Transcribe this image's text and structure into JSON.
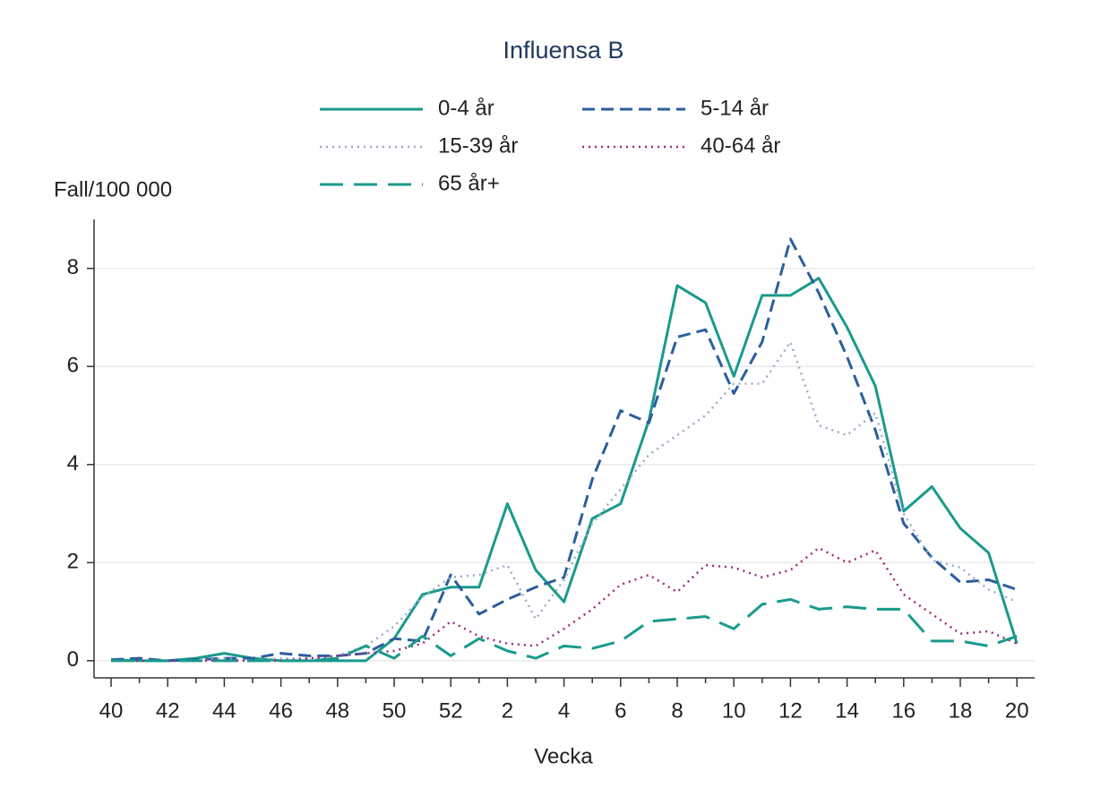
{
  "chart_data": {
    "type": "line",
    "title": "Influensa B",
    "ylabel": "Fall/100 000",
    "xlabel": "Vecka",
    "categories": [
      "40",
      null,
      "42",
      null,
      "44",
      null,
      "46",
      null,
      "48",
      null,
      "50",
      null,
      "52",
      null,
      "2",
      null,
      "4",
      null,
      "6",
      null,
      "8",
      null,
      "10",
      null,
      "12",
      null,
      "14",
      null,
      "16",
      null,
      "18",
      null,
      "20"
    ],
    "ylim": [
      -0.35,
      9
    ],
    "yticks": [
      0,
      2,
      4,
      6,
      8
    ],
    "grid": true,
    "series": [
      {
        "name": "0-4 år",
        "color": "#1a9a8c",
        "style": "solid",
        "values": [
          0.02,
          0,
          0,
          0.05,
          0.15,
          0.05,
          0,
          0,
          0,
          0,
          0.45,
          1.35,
          1.5,
          1.5,
          3.2,
          1.85,
          1.2,
          2.9,
          3.2,
          4.9,
          7.65,
          7.3,
          5.8,
          7.45,
          7.45,
          7.8,
          6.8,
          5.6,
          3.05,
          3.55,
          2.7,
          2.2,
          0.35
        ]
      },
      {
        "name": "5-14 år",
        "color": "#2c5e9e",
        "style": "dashed",
        "values": [
          0.02,
          0.05,
          0,
          0.02,
          0.05,
          0.05,
          0.15,
          0.1,
          0.1,
          0.15,
          0.45,
          0.4,
          1.75,
          0.95,
          1.25,
          1.5,
          1.7,
          3.7,
          5.1,
          4.85,
          6.6,
          6.75,
          5.45,
          6.5,
          8.6,
          7.5,
          6.2,
          4.7,
          2.8,
          2.1,
          1.6,
          1.65,
          1.45
        ]
      },
      {
        "name": "15-39 år",
        "color": "#9aaac8",
        "style": "dotted",
        "values": [
          0,
          0,
          0,
          0,
          0.05,
          0,
          0.05,
          0.05,
          0.1,
          0.3,
          0.7,
          1.3,
          1.7,
          1.75,
          1.95,
          0.85,
          1.65,
          2.8,
          3.5,
          4.2,
          4.6,
          5.0,
          5.65,
          5.65,
          6.5,
          4.8,
          4.6,
          5.05,
          3.0,
          2.05,
          1.9,
          1.45,
          1.2
        ]
      },
      {
        "name": "40-64 år",
        "color": "#9c2a7c",
        "style": "dotted",
        "values": [
          0,
          0,
          0,
          0,
          0,
          0,
          0,
          0.05,
          0.1,
          0.15,
          0.2,
          0.35,
          0.8,
          0.5,
          0.35,
          0.3,
          0.65,
          1.05,
          1.55,
          1.75,
          1.4,
          1.95,
          1.9,
          1.7,
          1.85,
          2.3,
          2.0,
          2.25,
          1.35,
          0.95,
          0.55,
          0.6,
          0.35
        ]
      },
      {
        "name": "65 år+",
        "color": "#1a9a8c",
        "style": "longdash",
        "values": [
          0,
          0,
          0,
          0,
          0,
          0,
          0,
          0,
          0.05,
          0.3,
          0.05,
          0.5,
          0.1,
          0.45,
          0.2,
          0.05,
          0.3,
          0.25,
          0.4,
          0.8,
          0.85,
          0.9,
          0.65,
          1.15,
          1.25,
          1.05,
          1.1,
          1.05,
          1.05,
          0.4,
          0.4,
          0.3,
          0.5
        ]
      }
    ]
  }
}
